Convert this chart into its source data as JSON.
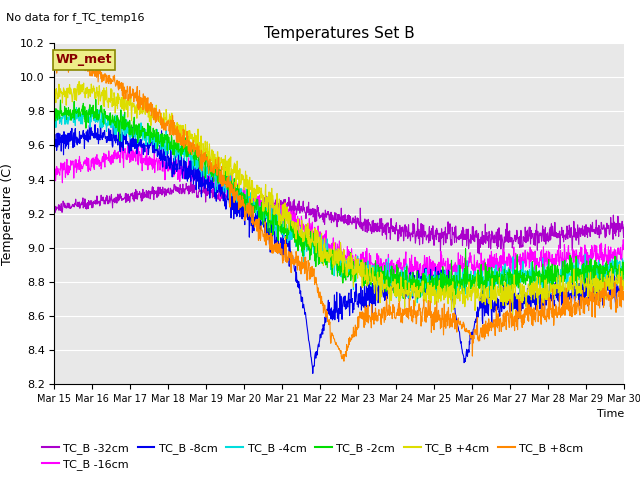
{
  "title": "Temperatures Set B",
  "subtitle": "No data for f_TC_temp16",
  "xlabel": "Time",
  "ylabel": "Temperature (C)",
  "ylim": [
    8.2,
    10.2
  ],
  "xlim_days": [
    0,
    15
  ],
  "x_tick_labels": [
    "Mar 15",
    "Mar 16",
    "Mar 17",
    "Mar 18",
    "Mar 19",
    "Mar 20",
    "Mar 21",
    "Mar 22",
    "Mar 23",
    "Mar 24",
    "Mar 25",
    "Mar 26",
    "Mar 27",
    "Mar 28",
    "Mar 29",
    "Mar 30"
  ],
  "wp_met_box_facecolor": "#eeee88",
  "wp_met_box_edgecolor": "#888800",
  "wp_met_text_color": "#880000",
  "background_color": "#e8e8e8",
  "series_colors": {
    "TC_B -32cm": "#aa00cc",
    "TC_B -16cm": "#ff00ff",
    "TC_B -8cm": "#0000ee",
    "TC_B -4cm": "#00dddd",
    "TC_B -2cm": "#00dd00",
    "TC_B +4cm": "#dddd00",
    "TC_B +8cm": "#ff8800"
  },
  "legend_labels": [
    "TC_B -32cm",
    "TC_B -16cm",
    "TC_B -8cm",
    "TC_B -4cm",
    "TC_B -2cm",
    "TC_B +4cm",
    "TC_B +8cm"
  ]
}
